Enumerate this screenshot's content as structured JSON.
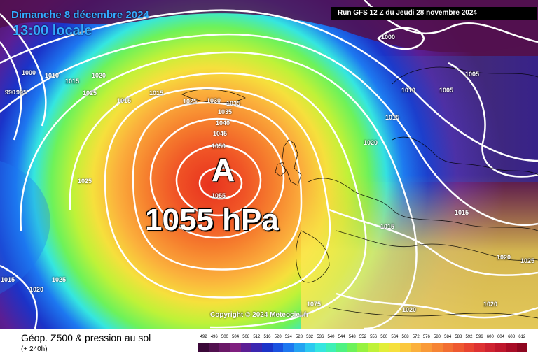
{
  "header": {
    "date_line": "Dimanche 8 décembre 2024",
    "time_line": "13:00 locale",
    "run_info": "Run GFS 12 Z du Jeudi 28 novembre 2024"
  },
  "map": {
    "high_center": {
      "letter": "A",
      "pressure_label": "1055 hPa"
    },
    "copyright": "Copyright © 2024 Meteociel.fr",
    "isobar_labels": [
      "1000",
      "1005",
      "1010",
      "1015",
      "1020",
      "1025",
      "1030",
      "1035",
      "1040",
      "1045",
      "1050",
      "1055",
      "990",
      "995",
      "1000",
      "1010",
      "1015",
      "1020",
      "1025",
      "1015",
      "1005",
      "1015",
      "1020",
      "1015",
      "1015",
      "1020",
      "1020",
      "1025",
      "1025",
      "1015",
      "1020",
      "1025",
      "1075",
      "1035"
    ]
  },
  "footer": {
    "title": "Géop. Z500 & pression au sol",
    "subtitle": "(+ 240h)"
  },
  "legend": {
    "values": [
      "492",
      "496",
      "500",
      "504",
      "508",
      "512",
      "516",
      "520",
      "524",
      "528",
      "532",
      "536",
      "540",
      "544",
      "548",
      "552",
      "556",
      "560",
      "564",
      "568",
      "572",
      "576",
      "580",
      "584",
      "588",
      "592",
      "596",
      "600",
      "604",
      "608",
      "612"
    ],
    "colors": [
      "#3a0838",
      "#52114f",
      "#6a1867",
      "#7f1f7f",
      "#5b1e94",
      "#3b26b0",
      "#1b33c8",
      "#1a52e0",
      "#1d78f0",
      "#23a3f2",
      "#2cc9f0",
      "#35e6e0",
      "#3ef0b6",
      "#4ef282",
      "#6df25a",
      "#96f240",
      "#bff238",
      "#e2ee38",
      "#f6e03c",
      "#fbc83e",
      "#fbb03c",
      "#f99a38",
      "#f68434",
      "#f26e32",
      "#ee5930",
      "#e84430",
      "#de3232",
      "#cf2330",
      "#bf172c",
      "#a80c26",
      "#8e0620"
    ]
  }
}
